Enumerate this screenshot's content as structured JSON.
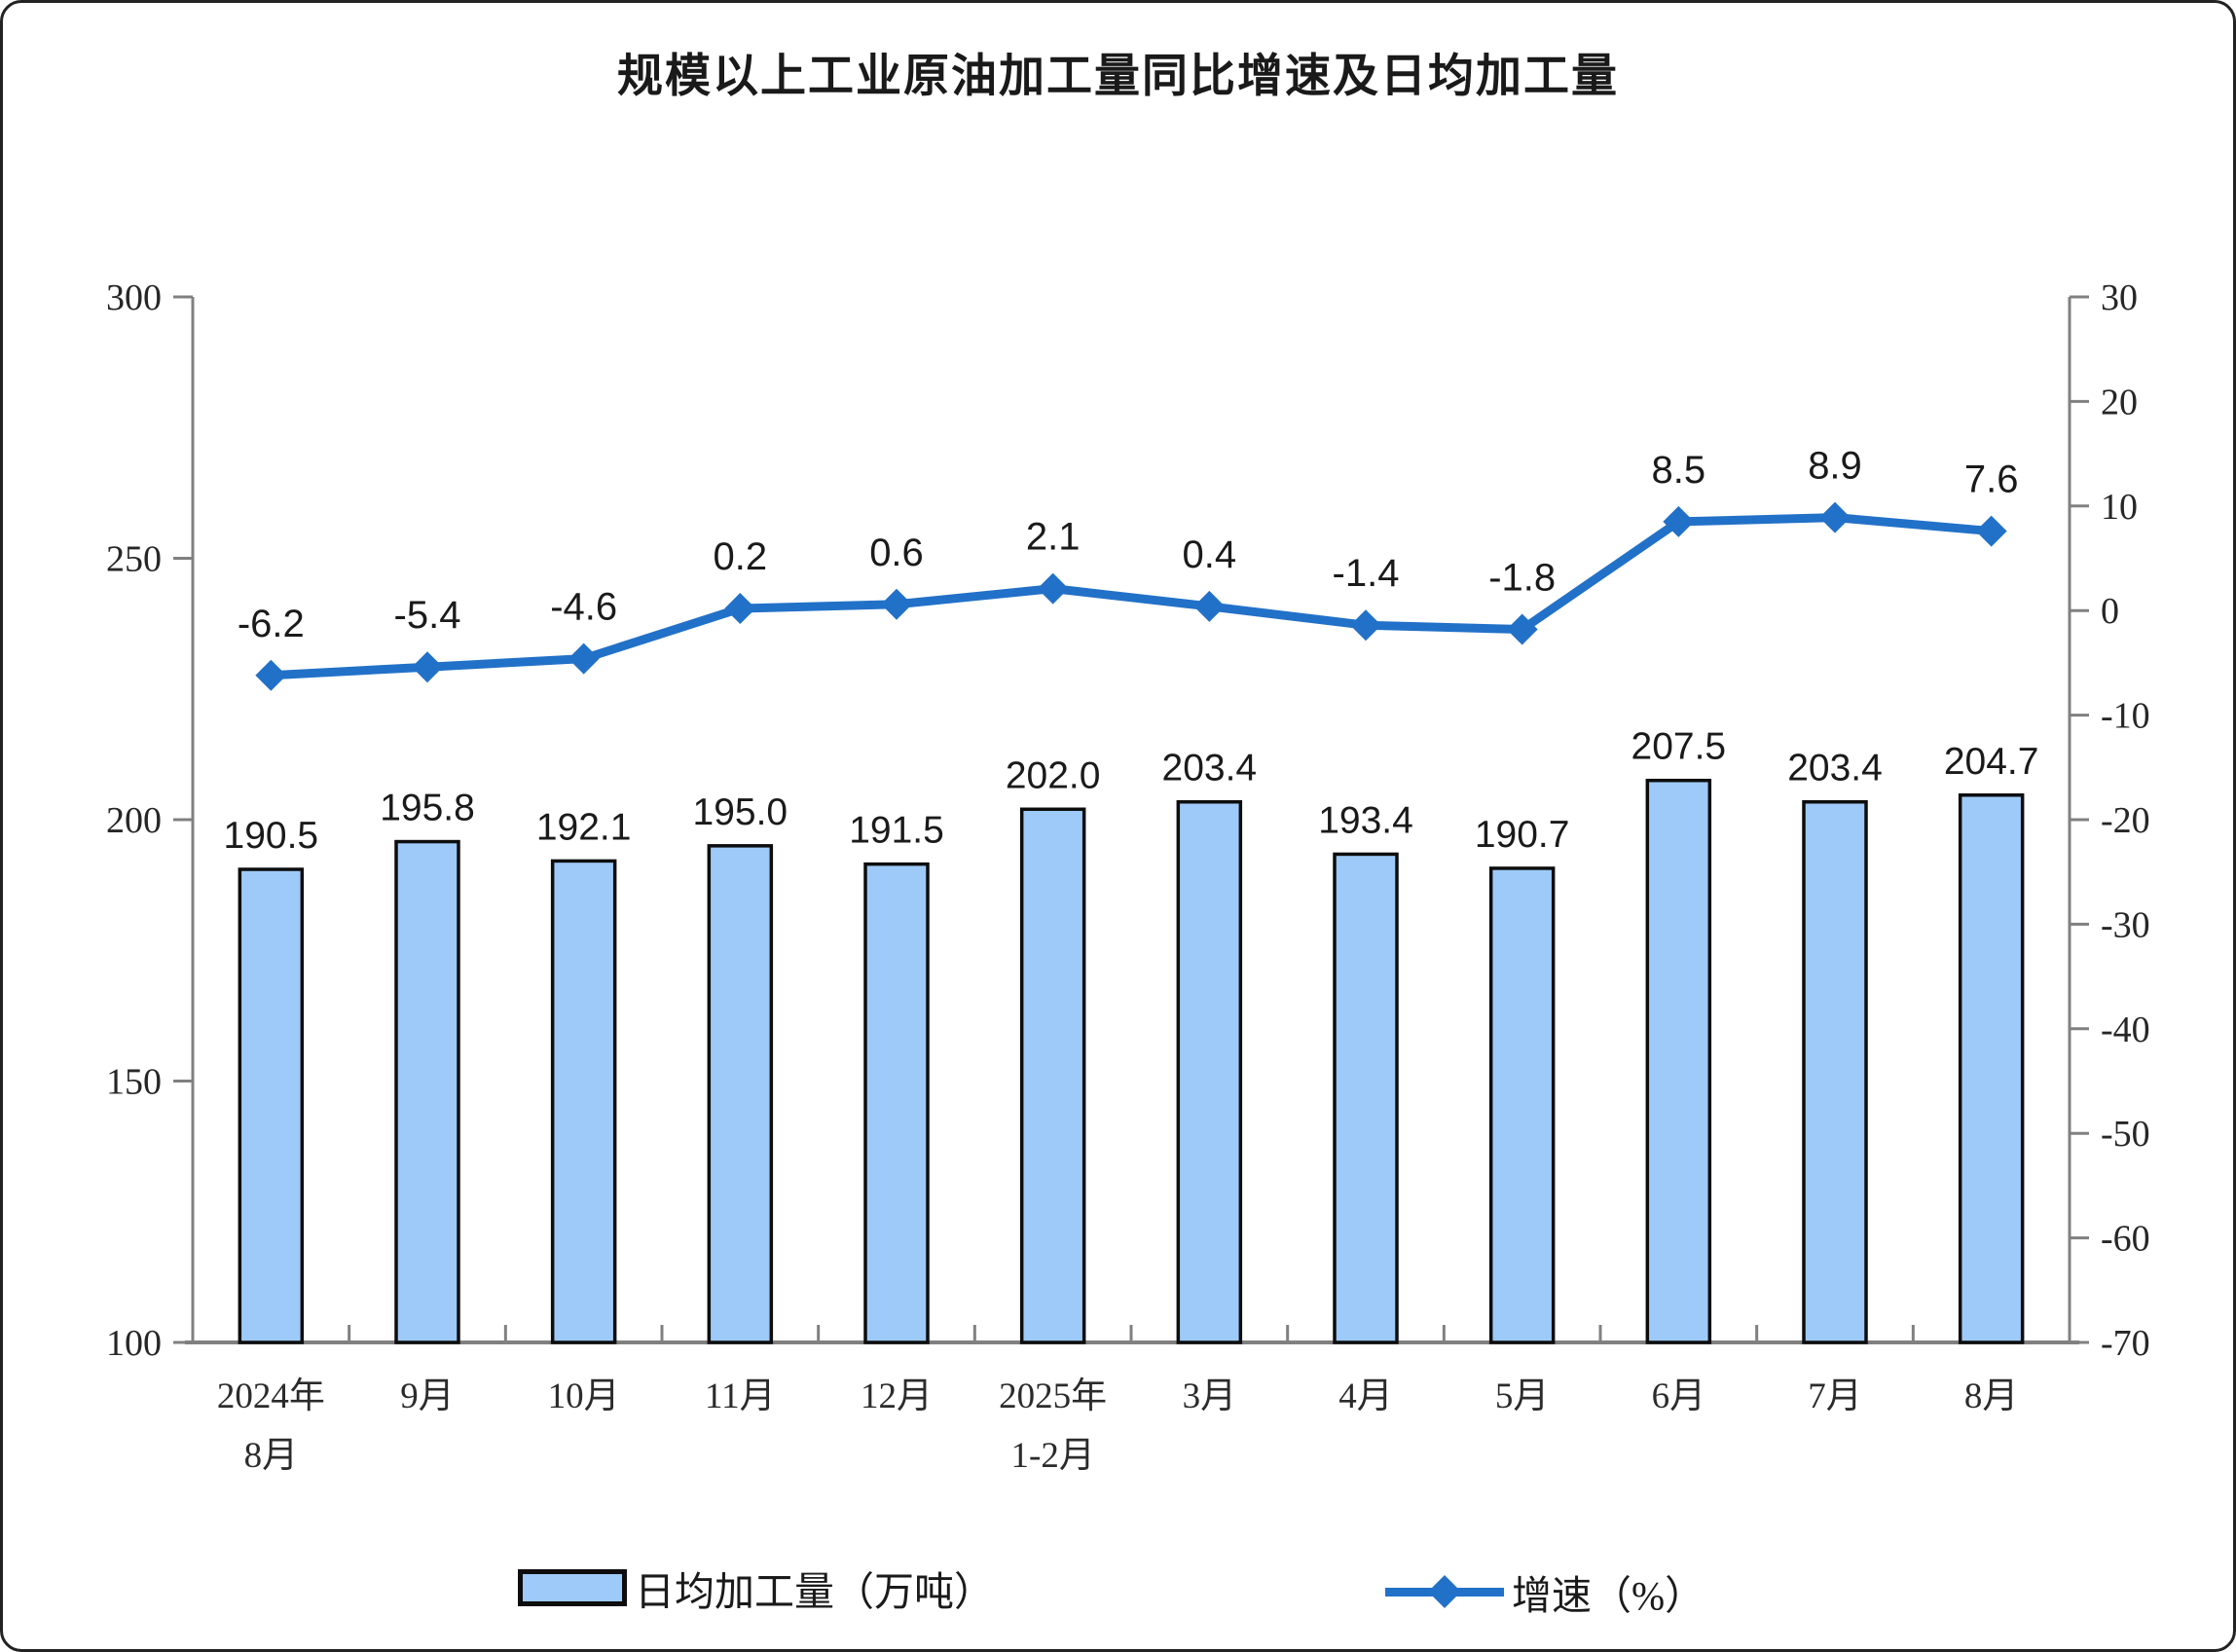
{
  "page": {
    "title": "规模以上工业原油加工量同比增速及日均加工量"
  },
  "chart_data": {
    "type": "bar",
    "subtype": "combo-bar-line-dual-axis",
    "title": "规模以上工业原油加工量同比增速及日均加工量",
    "categories": [
      [
        "2024年",
        "8月"
      ],
      [
        "9月"
      ],
      [
        "10月"
      ],
      [
        "11月"
      ],
      [
        "12月"
      ],
      [
        "2025年",
        "1-2月"
      ],
      [
        "3月"
      ],
      [
        "4月"
      ],
      [
        "5月"
      ],
      [
        "6月"
      ],
      [
        "7月"
      ],
      [
        "8月"
      ]
    ],
    "series": [
      {
        "name": "日均加工量（万吨）",
        "type": "bar",
        "axis": "left",
        "values": [
          190.5,
          195.8,
          192.1,
          195.0,
          191.5,
          202.0,
          203.4,
          193.4,
          190.7,
          207.5,
          203.4,
          204.7
        ]
      },
      {
        "name": "增速（%）",
        "type": "line",
        "axis": "right",
        "values": [
          -6.2,
          -5.4,
          -4.6,
          0.2,
          0.6,
          2.1,
          0.4,
          -1.4,
          -1.8,
          8.5,
          8.9,
          7.6
        ]
      }
    ],
    "left_axis": {
      "min": 100,
      "max": 300,
      "step": 50,
      "ticks": [
        300,
        250,
        200,
        150,
        100
      ]
    },
    "right_axis": {
      "min": -70,
      "max": 30,
      "step": 10,
      "ticks": [
        30,
        20,
        10,
        0,
        -10,
        -20,
        -30,
        -40,
        -50,
        -60,
        -70
      ]
    },
    "grid": false,
    "legend_position": "bottom",
    "colors": {
      "bar_fill": "#9DCAF8",
      "bar_border": "#0d0d0d",
      "line": "#2271C8",
      "axis": "#808080",
      "tick_text": "#262626",
      "data_label": "#1a1a1a"
    },
    "legend": {
      "bar_label": "日均加工量（万吨）",
      "line_label": "增速（%）"
    }
  }
}
